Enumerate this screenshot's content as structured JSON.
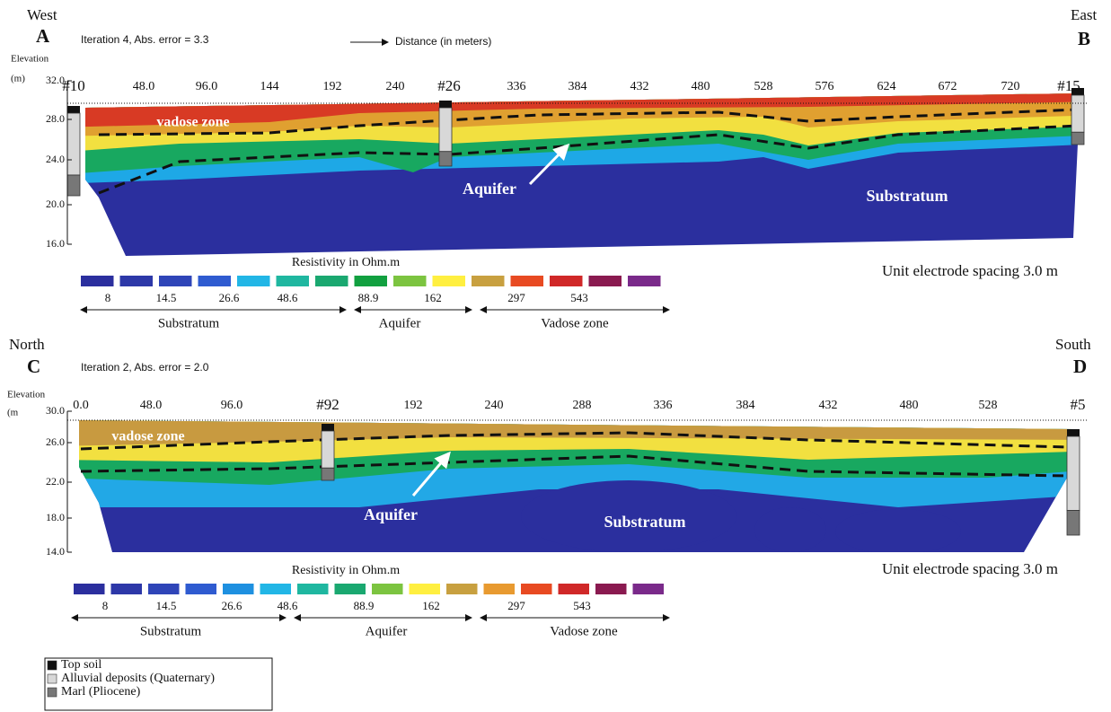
{
  "panels": [
    {
      "left_direction": "West",
      "left_letter": "A",
      "iteration": "Iteration 4, Abs. error = 3.3",
      "distance_label": "Distance (in meters)",
      "right_direction": "East",
      "right_letter": "B",
      "elevation_label": "Elevation",
      "elevation_unit": "(m)",
      "y_ticks": [
        "32.0",
        "28.0",
        "24.0",
        "20.0",
        "16.0"
      ],
      "x_ticks": [
        "#10",
        "48.0",
        "96.0",
        "144",
        "192",
        "240",
        "#26",
        "336",
        "384",
        "432",
        "480",
        "528",
        "576",
        "624",
        "672",
        "720",
        "#15"
      ],
      "zone_labels": [
        "vadose zone",
        "Aquifer",
        "Substratum"
      ],
      "resistivity_title": "Resistivity in Ohm.m",
      "resistivity_values": [
        "8",
        "14.5",
        "26.6",
        "48.6",
        "88.9",
        "162",
        "297",
        "543"
      ],
      "range_labels": [
        "Substratum",
        "Aquifer",
        "Vadose zone"
      ],
      "spacing": "Unit electrode spacing 3.0 m"
    },
    {
      "left_direction": "North",
      "left_letter": "C",
      "iteration": "Iteration 2, Abs. error = 2.0",
      "right_direction": "South",
      "right_letter": "D",
      "elevation_label": "Elevation",
      "elevation_unit": "(m",
      "y_ticks": [
        "30.0",
        "26.0",
        "22.0",
        "18.0",
        "14.0"
      ],
      "x_ticks": [
        "0.0",
        "48.0",
        "96.0",
        "#92",
        "192",
        "240",
        "288",
        "336",
        "384",
        "432",
        "480",
        "528",
        "#5"
      ],
      "zone_labels": [
        "vadose zone",
        "Aquifer",
        "Substratum"
      ],
      "resistivity_title": "Resistivity in Ohm.m",
      "resistivity_values": [
        "8",
        "14.5",
        "26.6",
        "48.6",
        "88.9",
        "162",
        "297",
        "543"
      ],
      "range_labels": [
        "Substratum",
        "Aquifer",
        "Vadose zone"
      ],
      "spacing": "Unit electrode spacing 3.0 m"
    }
  ],
  "legend": [
    "Top soil",
    "Alluvial deposits (Quaternary)",
    "Marl (Pliocene)"
  ]
}
